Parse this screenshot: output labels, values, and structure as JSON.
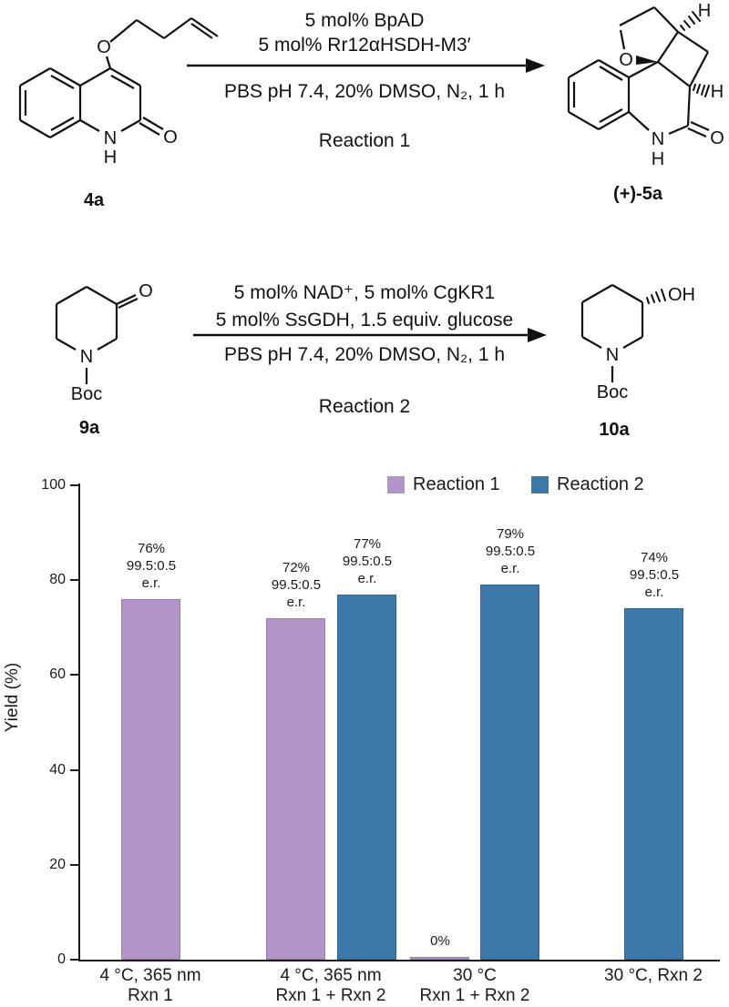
{
  "figure": {
    "scheme1": {
      "reagent_line1": "5 mol% BpAD",
      "reagent_line2": "5 mol% Rr12αHSDH-M3′",
      "conditions": "PBS pH 7.4, 20% DMSO, N₂, 1 h",
      "reaction_name": "Reaction 1",
      "substrate": {
        "label": "4a",
        "atoms": {
          "o_ether": "O",
          "o_carbonyl": "O",
          "n": "N",
          "nh": "H"
        }
      },
      "product": {
        "label": "(+)-5a",
        "atoms": {
          "o_ring": "O",
          "o_carbonyl": "O",
          "n": "N",
          "nh": "H",
          "h_top": "H",
          "h_side": "H"
        }
      }
    },
    "scheme2": {
      "reagent_line1": "5 mol% NAD⁺, 5 mol% CgKR1",
      "reagent_line2": "5 mol% SsGDH, 1.5 equiv. glucose",
      "conditions": "PBS pH 7.4, 20% DMSO, N₂, 1 h",
      "reaction_name": "Reaction 2",
      "substrate": {
        "label": "9a",
        "atoms": {
          "o_carbonyl": "O",
          "n": "N",
          "boc": "Boc"
        }
      },
      "product": {
        "label": "10a",
        "atoms": {
          "oh": "OH",
          "n": "N",
          "boc": "Boc"
        }
      }
    }
  },
  "chart_data": {
    "type": "bar",
    "title": "",
    "xlabel": "",
    "ylabel": "Yield (%)",
    "ylim": [
      0,
      100
    ],
    "yticks": [
      0,
      20,
      40,
      60,
      80,
      100
    ],
    "grid": false,
    "legend_position": "top",
    "series": [
      {
        "name": "Reaction 1",
        "color": "#b294c8",
        "border": "#9a7bb4"
      },
      {
        "name": "Reaction 2",
        "color": "#3d79a8",
        "border": "#336690"
      }
    ],
    "groups": [
      {
        "label_lines": [
          "4 °C, 365 nm",
          "Rxn 1"
        ],
        "bars": [
          {
            "series": "Reaction 1",
            "value": 76,
            "er": "99.5:0.5",
            "annotation": [
              "76%",
              "99.5:0.5",
              "e.r."
            ]
          }
        ]
      },
      {
        "label_lines": [
          "4 °C, 365 nm",
          "Rxn 1 + Rxn 2"
        ],
        "bars": [
          {
            "series": "Reaction 1",
            "value": 72,
            "er": "99.5:0.5",
            "annotation": [
              "72%",
              "99.5:0.5",
              "e.r."
            ]
          },
          {
            "series": "Reaction 2",
            "value": 77,
            "er": "99.5:0.5",
            "annotation": [
              "77%",
              "99.5:0.5",
              "e.r."
            ]
          }
        ]
      },
      {
        "label_lines": [
          "30 °C",
          "Rxn 1 + Rxn 2"
        ],
        "bars": [
          {
            "series": "Reaction 1",
            "value": 0,
            "er": null,
            "annotation": [
              "0%"
            ]
          },
          {
            "series": "Reaction 2",
            "value": 79,
            "er": "99.5:0.5",
            "annotation": [
              "79%",
              "99.5:0.5",
              "e.r."
            ]
          }
        ]
      },
      {
        "label_lines": [
          "30 °C, Rxn 2"
        ],
        "bars": [
          {
            "series": "Reaction 2",
            "value": 74,
            "er": "99.5:0.5",
            "annotation": [
              "74%",
              "99.5:0.5",
              "e.r."
            ]
          }
        ]
      }
    ]
  }
}
